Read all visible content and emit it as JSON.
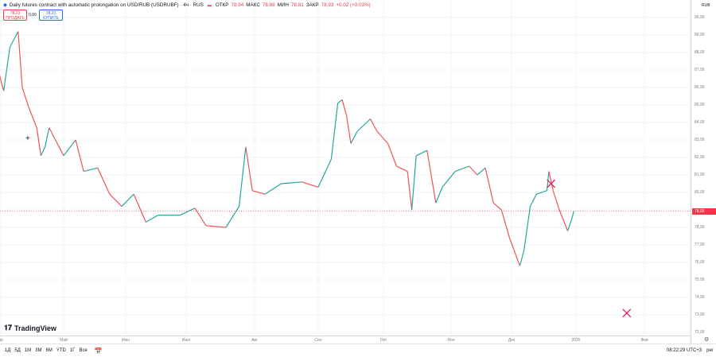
{
  "header": {
    "title": "Daily futures contract with automatic prolongation on USD/RUB (USDRUBF) · 4ч · RUS",
    "open_label": "ОТКР",
    "open": "78,94",
    "high_label": "МАКС",
    "high": "78,98",
    "low_label": "МИН",
    "low": "78,81",
    "close_label": "ЗАКР",
    "close": "78,93",
    "change": "+0,02 (+0,03%)"
  },
  "trade": {
    "sell_price": "78,23",
    "sell_label": "ПРОДАТЬ",
    "spread": "0,00",
    "buy_price": "78,23",
    "buy_label": "КУПИТЬ"
  },
  "colors": {
    "up": "#26a69a",
    "down": "#ef5350",
    "price_tag": "#f23645",
    "marker": "#e0245e"
  },
  "logo": "TradingView",
  "price_axis": {
    "currency": "RUB",
    "ticks": [
      "90,00",
      "89,00",
      "88,00",
      "87,00",
      "86,00",
      "85,00",
      "84,00",
      "83,00",
      "82,00",
      "81,00",
      "80,00",
      "78,00",
      "77,00",
      "76,00",
      "75,00",
      "74,00",
      "73,00",
      "72,00"
    ],
    "last_price": "78,93"
  },
  "time_axis": {
    "ticks": [
      "пр",
      "Май",
      "Июн",
      "Июл",
      "Авг",
      "Сен",
      "Окт",
      "Ноя",
      "Дек",
      "2026",
      "Фев"
    ]
  },
  "bottom_bar": {
    "ranges": [
      "1Д",
      "5Д",
      "1М",
      "3М",
      "6М",
      "YTD",
      "1Г",
      "Все"
    ],
    "clock": "08:22:29 UTC+3",
    "session": "рег"
  },
  "chart_data": {
    "type": "line",
    "title": "Daily futures contract with automatic prolongation on USD/RUB (USDRUBF) · 4ч · RUS",
    "ylim": [
      71.0,
      91.0
    ],
    "xlim": [
      "2025-03-31",
      "2026-02-20"
    ],
    "grid": true,
    "series": [
      {
        "values": [
          [
            "2025-03-31",
            86.7
          ],
          [
            "2025-04-02",
            85.8
          ],
          [
            "2025-04-05",
            88.3
          ],
          [
            "2025-04-09",
            89.2
          ],
          [
            "2025-04-11",
            86.0
          ],
          [
            "2025-04-14",
            84.9
          ],
          [
            "2025-04-18",
            83.7
          ],
          [
            "2025-04-20",
            82.1
          ],
          [
            "2025-04-22",
            82.6
          ],
          [
            "2025-04-24",
            83.7
          ],
          [
            "2025-04-27",
            83.0
          ],
          [
            "2025-05-01",
            82.1
          ],
          [
            "2025-05-07",
            83.0
          ],
          [
            "2025-05-11",
            81.2
          ],
          [
            "2025-05-18",
            81.4
          ],
          [
            "2025-05-24",
            79.9
          ],
          [
            "2025-05-30",
            79.2
          ],
          [
            "2025-06-05",
            79.9
          ],
          [
            "2025-06-11",
            78.3
          ],
          [
            "2025-06-17",
            78.7
          ],
          [
            "2025-06-28",
            78.7
          ],
          [
            "2025-07-05",
            79.1
          ],
          [
            "2025-07-10",
            78.1
          ],
          [
            "2025-07-19",
            78.0
          ],
          [
            "2025-07-25",
            79.2
          ],
          [
            "2025-07-28",
            82.6
          ],
          [
            "2025-07-31",
            80.1
          ],
          [
            "2025-08-06",
            79.9
          ],
          [
            "2025-08-14",
            80.5
          ],
          [
            "2025-08-24",
            80.6
          ],
          [
            "2025-09-01",
            80.3
          ],
          [
            "2025-09-07",
            81.9
          ],
          [
            "2025-09-10",
            85.1
          ],
          [
            "2025-09-12",
            85.3
          ],
          [
            "2025-09-14",
            84.4
          ],
          [
            "2025-09-16",
            82.8
          ],
          [
            "2025-09-19",
            83.5
          ],
          [
            "2025-09-25",
            84.2
          ],
          [
            "2025-09-28",
            83.5
          ],
          [
            "2025-10-03",
            82.8
          ],
          [
            "2025-10-07",
            81.5
          ],
          [
            "2025-10-12",
            81.2
          ],
          [
            "2025-10-14",
            79.0
          ],
          [
            "2025-10-16",
            82.1
          ],
          [
            "2025-10-21",
            82.4
          ],
          [
            "2025-10-25",
            79.4
          ],
          [
            "2025-10-28",
            80.3
          ],
          [
            "2025-11-03",
            81.2
          ],
          [
            "2025-11-10",
            81.5
          ],
          [
            "2025-11-14",
            81.0
          ],
          [
            "2025-11-18",
            81.4
          ],
          [
            "2025-11-22",
            79.4
          ],
          [
            "2025-11-26",
            79.0
          ],
          [
            "2025-11-30",
            77.4
          ],
          [
            "2025-12-05",
            75.8
          ],
          [
            "2025-12-07",
            76.7
          ],
          [
            "2025-12-10",
            79.2
          ],
          [
            "2025-12-13",
            79.9
          ],
          [
            "2025-12-18",
            80.1
          ],
          [
            "2025-12-19",
            81.2
          ],
          [
            "2025-12-21",
            80.1
          ],
          [
            "2025-12-24",
            79.0
          ],
          [
            "2025-12-28",
            77.8
          ],
          [
            "2025-12-30",
            78.5
          ],
          [
            "2025-12-31",
            78.93
          ]
        ]
      }
    ],
    "markers": [
      [
        "2025-12-20",
        80.5
      ],
      [
        "2026-01-24",
        73.1
      ]
    ]
  }
}
